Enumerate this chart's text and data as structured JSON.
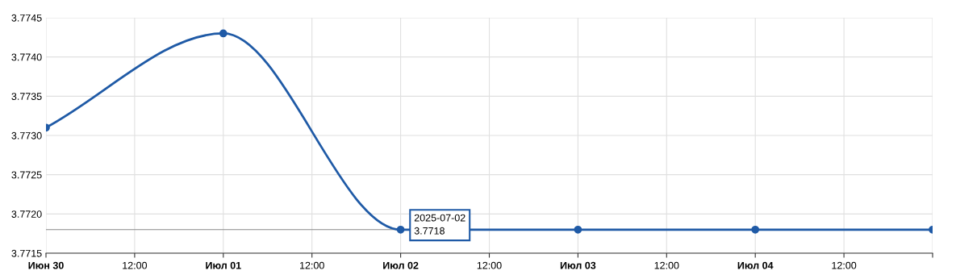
{
  "chart_data": {
    "type": "line",
    "x": [
      "2025-06-30",
      "2025-07-01",
      "2025-07-02",
      "2025-07-03",
      "2025-07-04",
      "2025-07-05"
    ],
    "series": [
      {
        "color": "#1f5aa6",
        "values": [
          3.7731,
          3.7743,
          3.7718,
          3.7718,
          3.7718,
          3.7718
        ]
      }
    ],
    "xlim": [
      "2025-06-30",
      "2025-07-05"
    ],
    "xticks": [
      {
        "value": "2025-06-30",
        "label": "Июн 30"
      },
      {
        "value": "2025-06-30T12:00",
        "label": "12:00"
      },
      {
        "value": "2025-07-01",
        "label": "Июл 01"
      },
      {
        "value": "2025-07-01T12:00",
        "label": "12:00"
      },
      {
        "value": "2025-07-02",
        "label": "Июл 02"
      },
      {
        "value": "2025-07-02T12:00",
        "label": "12:00"
      },
      {
        "value": "2025-07-03",
        "label": "Июл 03"
      },
      {
        "value": "2025-07-03T12:00",
        "label": "12:00"
      },
      {
        "value": "2025-07-04",
        "label": "Июл 04"
      },
      {
        "value": "2025-07-04T12:00",
        "label": "12:00"
      },
      {
        "value": "2025-07-05",
        "label": null
      }
    ],
    "ylim": [
      3.7715,
      3.7745
    ],
    "yticks": [
      3.7715,
      {
        "value": 3.772,
        "label": "3.7720"
      },
      3.7725,
      {
        "value": 3.773,
        "label": "3.7730"
      },
      3.7735,
      {
        "value": 3.774,
        "label": "3.7740"
      },
      3.7745
    ],
    "ref_lines": [
      {
        "axis": "y",
        "value": 3.7718,
        "color": "#888888"
      }
    ],
    "annotations": [
      {
        "text": "2025-07-02\n3.7718",
        "x": "2025-07-02",
        "y": 3.7718
      }
    ],
    "grid": true,
    "marker": "circle",
    "line_style": "solid"
  }
}
